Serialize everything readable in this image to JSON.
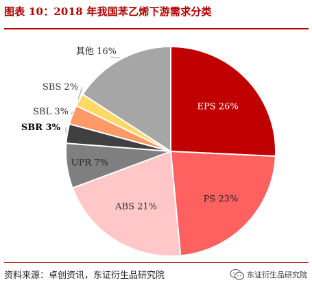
{
  "header": {
    "title": "图表 10：2018 年我国苯乙烯下游需求分类"
  },
  "footer": {
    "source": "资料来源：卓创资讯，东证衍生品研究院",
    "brand_text": "东证衍生品研究院",
    "brand_icon": "wechat-icon"
  },
  "colors": {
    "title": "#b00000",
    "rule": "#b00000"
  },
  "chart_data": {
    "type": "pie",
    "unit": "%",
    "start_angle_deg": 0,
    "direction": "clockwise",
    "slices": [
      {
        "label": "EPS 26%",
        "name": "EPS",
        "value": 26,
        "color": "#c00000",
        "text_color": "#ffffff",
        "label_pos": "inside"
      },
      {
        "label": "PS 23%",
        "name": "PS",
        "value": 23,
        "color": "#ff6161",
        "text_color": "#222222",
        "label_pos": "inside"
      },
      {
        "label": "ABS 21%",
        "name": "ABS",
        "value": 21,
        "color": "#ffc7c7",
        "text_color": "#333333",
        "label_pos": "inside"
      },
      {
        "label": "UPR 7%",
        "name": "UPR",
        "value": 7,
        "color": "#7f7f7f",
        "text_color": "#222222",
        "label_pos": "inside"
      },
      {
        "label": "SBR 3%",
        "name": "SBR",
        "value": 3,
        "color": "#404040",
        "text_color": "#000000",
        "label_pos": "outside"
      },
      {
        "label": "SBL 3%",
        "name": "SBL",
        "value": 3,
        "color": "#ff9966",
        "text_color": "#333333",
        "label_pos": "outside"
      },
      {
        "label": "SBS 2%",
        "name": "SBS",
        "value": 2,
        "color": "#ffd966",
        "text_color": "#333333",
        "label_pos": "outside"
      },
      {
        "label": "其他 16%",
        "name": "其他",
        "value": 16,
        "color": "#a6a6a6",
        "text_color": "#333333",
        "label_pos": "outside"
      }
    ]
  }
}
